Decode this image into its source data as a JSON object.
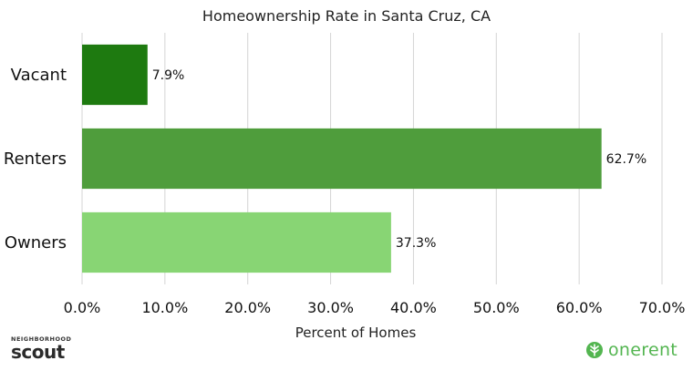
{
  "chart_data": {
    "type": "bar",
    "orientation": "horizontal",
    "title": "Homeownership Rate in Santa Cruz, CA",
    "xlabel": "Percent of Homes",
    "ylabel": "",
    "categories": [
      "Vacant",
      "Renters",
      "Owners"
    ],
    "values": [
      7.9,
      62.7,
      37.3
    ],
    "value_labels": [
      "7.9%",
      "62.7%",
      "37.3%"
    ],
    "colors": [
      "#1e7a10",
      "#4f9d3c",
      "#88d574"
    ],
    "xlim": [
      0,
      70
    ],
    "xticks": [
      0,
      10,
      20,
      30,
      40,
      50,
      60,
      70
    ],
    "xtick_labels": [
      "0.0%",
      "10.0%",
      "20.0%",
      "30.0%",
      "40.0%",
      "50.0%",
      "60.0%",
      "70.0%"
    ],
    "grid": "vertical",
    "legend": "none"
  },
  "branding": {
    "left_small": "NEIGHBORHOOD",
    "left_big": "scout",
    "right_word": "onerent"
  }
}
